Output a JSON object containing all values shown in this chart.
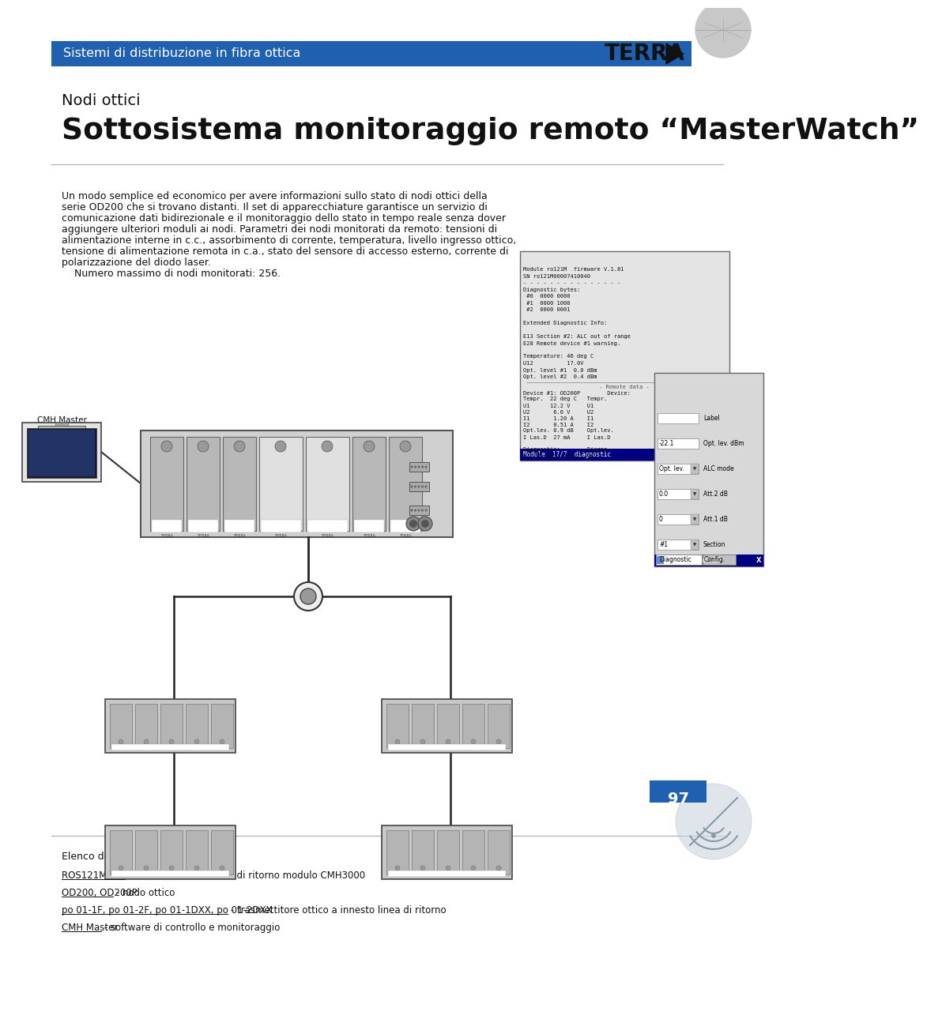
{
  "bg_color": "#ffffff",
  "header_bar_color": "#2060b0",
  "header_text": "Sistemi di distribuzione in fibra ottica",
  "header_text_color": "#ffffff",
  "brand_text": "TERRA",
  "subtitle1": "Nodi ottici",
  "title": "Sottosistema monitoraggio remoto “MasterWatch”",
  "body_text": "Un modo semplice ed economico per avere informazioni sullo stato di nodi ottici della\nserie OD200 che si trovano distanti. Il set di apparecchiature garantisce un servizio di\ncomunicazione dati bidirezionale e il monitoraggio dello stato in tempo reale senza dover\naggiungere ulteriori moduli ai nodi. Parametri dei nodi monitorati da remoto: tensioni di\nalimentazione interne in c.c., assorbimento di corrente, temperatura, livello ingresso ottico,\ntensione di alimentazione remota in c.a., stato del sensore di accesso esterno, corrente di\npolarizzazione del diodo laser.\n    Numero massimo di nodi monitorati: 256.",
  "page_number": "97",
  "page_number_bg": "#2060b0",
  "footer_title": "Elenco delle apparecchiature:",
  "footer_lines": [
    {
      "text": "ROS121M o ro121M - ricevitore ottico linea di ritorno modulo CMH3000",
      "underline": "ROS121M o ro121M"
    },
    {
      "text": "OD200, OD200P - nodo ottico",
      "underline": "OD200, OD200P"
    },
    {
      "text": "po 01-1F, po 01-2F, po 01-1DXX, po 01-2DXX - trasmettitore ottico a innesto linea di ritorno",
      "underline": "po 01-1F, po 01-2F, po 01-1DXX, po 01-2DXX"
    },
    {
      "text": "CMH Master - software di controllo e monitoraggio",
      "underline": "CMH Master"
    }
  ]
}
